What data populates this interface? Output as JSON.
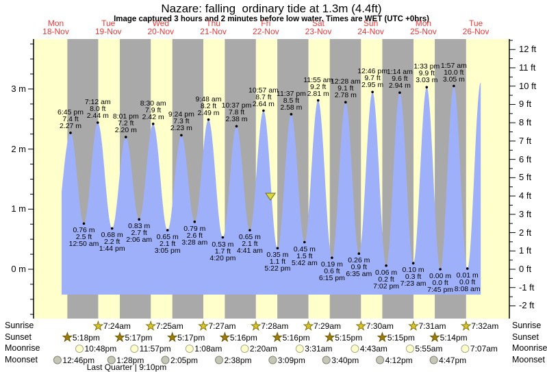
{
  "title": "Nazare: falling  ordinary tide at 1.3m (4.4ft)",
  "subtitle": "Image captured 3 hours and 2 minutes before low water. Times are WET (UTC +0hrs)",
  "chart_data": {
    "type": "area",
    "title": "Nazare: falling  ordinary tide at 1.3m (4.4ft)",
    "ylabel_left_unit": "m",
    "ylabel_right_unit": "ft",
    "ylim_left_m": [
      -0.8,
      3.8
    ],
    "ylim_right_ft": [
      -2,
      12
    ],
    "grid": false,
    "legend_position": "none",
    "days": [
      {
        "name": "Mon",
        "date": "18-Nov"
      },
      {
        "name": "Tue",
        "date": "19-Nov"
      },
      {
        "name": "Wed",
        "date": "20-Nov"
      },
      {
        "name": "Thu",
        "date": "21-Nov"
      },
      {
        "name": "Fri",
        "date": "22-Nov"
      },
      {
        "name": "Sat",
        "date": "23-Nov"
      },
      {
        "name": "Sun",
        "date": "24-Nov"
      },
      {
        "name": "Mon",
        "date": "25-Nov"
      },
      {
        "name": "Tue",
        "date": "26-Nov"
      }
    ],
    "y_axis_left_labels": [
      "3 m",
      "2 m",
      "1 m",
      "0 m"
    ],
    "y_axis_right_labels": [
      "12 ft",
      "11 ft",
      "10 ft",
      "9 ft",
      "8 ft",
      "7 ft",
      "6 ft",
      "5 ft",
      "4 ft",
      "3 ft",
      "2 ft",
      "1 ft",
      "0 ft",
      "-1 ft",
      "-2 ft"
    ],
    "extremes": [
      {
        "day": 0,
        "type": "high",
        "time": "6:45 pm",
        "ft": "7.4 ft",
        "m": "2.27 m"
      },
      {
        "day": 1,
        "type": "low",
        "time": "12:50 am",
        "ft": "2.5 ft",
        "m": "0.76 m"
      },
      {
        "day": 1,
        "type": "high",
        "time": "7:12 am",
        "ft": "8.0 ft",
        "m": "2.44 m"
      },
      {
        "day": 1,
        "type": "low",
        "time": "1:44 pm",
        "ft": "2.2 ft",
        "m": "0.68 m"
      },
      {
        "day": 1,
        "type": "high",
        "time": "8:01 pm",
        "ft": "7.2 ft",
        "m": "2.20 m"
      },
      {
        "day": 2,
        "type": "low",
        "time": "2:06 am",
        "ft": "2.7 ft",
        "m": "0.83 m"
      },
      {
        "day": 2,
        "type": "high",
        "time": "8:30 am",
        "ft": "7.9 ft",
        "m": "2.42 m"
      },
      {
        "day": 2,
        "type": "low",
        "time": "3:05 pm",
        "ft": "2.1 ft",
        "m": "0.65 m"
      },
      {
        "day": 2,
        "type": "high",
        "time": "9:24 pm",
        "ft": "7.3 ft",
        "m": "2.23 m"
      },
      {
        "day": 3,
        "type": "low",
        "time": "3:28 am",
        "ft": "2.6 ft",
        "m": "0.79 m"
      },
      {
        "day": 3,
        "type": "high",
        "time": "9:48 am",
        "ft": "8.2 ft",
        "m": "2.49 m"
      },
      {
        "day": 3,
        "type": "low",
        "time": "4:20 pm",
        "ft": "1.7 ft",
        "m": "0.53 m"
      },
      {
        "day": 3,
        "type": "high",
        "time": "10:37 pm",
        "ft": "7.8 ft",
        "m": "2.38 m"
      },
      {
        "day": 4,
        "type": "low",
        "time": "4:41 am",
        "ft": "2.1 ft",
        "m": "0.65 m"
      },
      {
        "day": 4,
        "type": "high",
        "time": "10:57 am",
        "ft": "8.7 ft",
        "m": "2.64 m"
      },
      {
        "day": 4,
        "type": "low",
        "time": "5:22 pm",
        "ft": "1.1 ft",
        "m": "0.35 m"
      },
      {
        "day": 4,
        "type": "high",
        "time": "11:37 pm",
        "ft": "8.5 ft",
        "m": "2.58 m"
      },
      {
        "day": 5,
        "type": "low",
        "time": "5:42 am",
        "ft": "1.5 ft",
        "m": "0.45 m"
      },
      {
        "day": 5,
        "type": "high",
        "time": "11:55 am",
        "ft": "9.2 ft",
        "m": "2.81 m"
      },
      {
        "day": 5,
        "type": "low",
        "time": "6:15 pm",
        "ft": "0.6 ft",
        "m": "0.19 m"
      },
      {
        "day": 6,
        "type": "high",
        "time": "12:28 am",
        "ft": "9.1 ft",
        "m": "2.78 m"
      },
      {
        "day": 6,
        "type": "low",
        "time": "6:35 am",
        "ft": "0.9 ft",
        "m": "0.26 m"
      },
      {
        "day": 6,
        "type": "high",
        "time": "12:46 pm",
        "ft": "9.7 ft",
        "m": "2.95 m"
      },
      {
        "day": 6,
        "type": "low",
        "time": "7:02 pm",
        "ft": "0.2 ft",
        "m": "0.06 m"
      },
      {
        "day": 7,
        "type": "high",
        "time": "1:14 am",
        "ft": "9.6 ft",
        "m": "2.94 m"
      },
      {
        "day": 7,
        "type": "low",
        "time": "7:23 am",
        "ft": "0.3 ft",
        "m": "0.10 m"
      },
      {
        "day": 7,
        "type": "high",
        "time": "1:33 pm",
        "ft": "9.9 ft",
        "m": "3.03 m"
      },
      {
        "day": 7,
        "type": "low",
        "time": "7:45 pm",
        "ft": "0.0 ft",
        "m": "0.00 m"
      },
      {
        "day": 8,
        "type": "high",
        "time": "1:57 am",
        "ft": "10.0 ft",
        "m": "3.05 m"
      },
      {
        "day": 8,
        "type": "low",
        "time": "8:08 am",
        "ft": "0.0 ft",
        "m": "0.01 m"
      }
    ],
    "sun_moon": {
      "rows": [
        "Sunrise",
        "Sunset",
        "Moonrise",
        "Moonset"
      ],
      "sunrise": [
        {
          "day": 1,
          "time": "7:24am"
        },
        {
          "day": 2,
          "time": "7:25am"
        },
        {
          "day": 3,
          "time": "7:27am"
        },
        {
          "day": 4,
          "time": "7:28am"
        },
        {
          "day": 5,
          "time": "7:29am"
        },
        {
          "day": 6,
          "time": "7:30am"
        },
        {
          "day": 7,
          "time": "7:31am"
        },
        {
          "day": 8,
          "time": "7:32am"
        }
      ],
      "sunset": [
        {
          "day": 0,
          "time": "5:18pm"
        },
        {
          "day": 1,
          "time": "5:17pm"
        },
        {
          "day": 2,
          "time": "5:17pm"
        },
        {
          "day": 3,
          "time": "5:16pm"
        },
        {
          "day": 4,
          "time": "5:16pm"
        },
        {
          "day": 5,
          "time": "5:15pm"
        },
        {
          "day": 6,
          "time": "5:15pm"
        },
        {
          "day": 7,
          "time": "5:14pm"
        }
      ],
      "moonrise": [
        {
          "day": 0,
          "time": "10:48pm"
        },
        {
          "day": 1,
          "time": "11:57pm"
        },
        {
          "day": 3,
          "time": "1:08am"
        },
        {
          "day": 4,
          "time": "2:20am"
        },
        {
          "day": 5,
          "time": "3:31am"
        },
        {
          "day": 6,
          "time": "4:43am"
        },
        {
          "day": 7,
          "time": "5:55am"
        },
        {
          "day": 8,
          "time": "7:07am"
        }
      ],
      "moonset": [
        {
          "day": 0,
          "time": "12:46pm"
        },
        {
          "day": 1,
          "time": "1:28pm"
        },
        {
          "day": 2,
          "time": "2:05pm"
        },
        {
          "day": 3,
          "time": "2:38pm"
        },
        {
          "day": 4,
          "time": "3:09pm"
        },
        {
          "day": 5,
          "time": "3:40pm"
        },
        {
          "day": 6,
          "time": "4:12pm"
        },
        {
          "day": 7,
          "time": "4:47pm"
        }
      ]
    },
    "moon_phase_note": "Last Quarter | 9:10pm",
    "colors": {
      "day_band": "#ffffcc",
      "night_band": "#a9a9a9",
      "tide_fill": "#9fb0fa",
      "date_text": "#ee3838",
      "sunrise_star": "#d4c52f",
      "sunset_star": "#9c7f0a",
      "moonrise_circle": "#ffffcc",
      "moonset_circle": "#c6c6b4",
      "marker": "#d8d838"
    }
  }
}
